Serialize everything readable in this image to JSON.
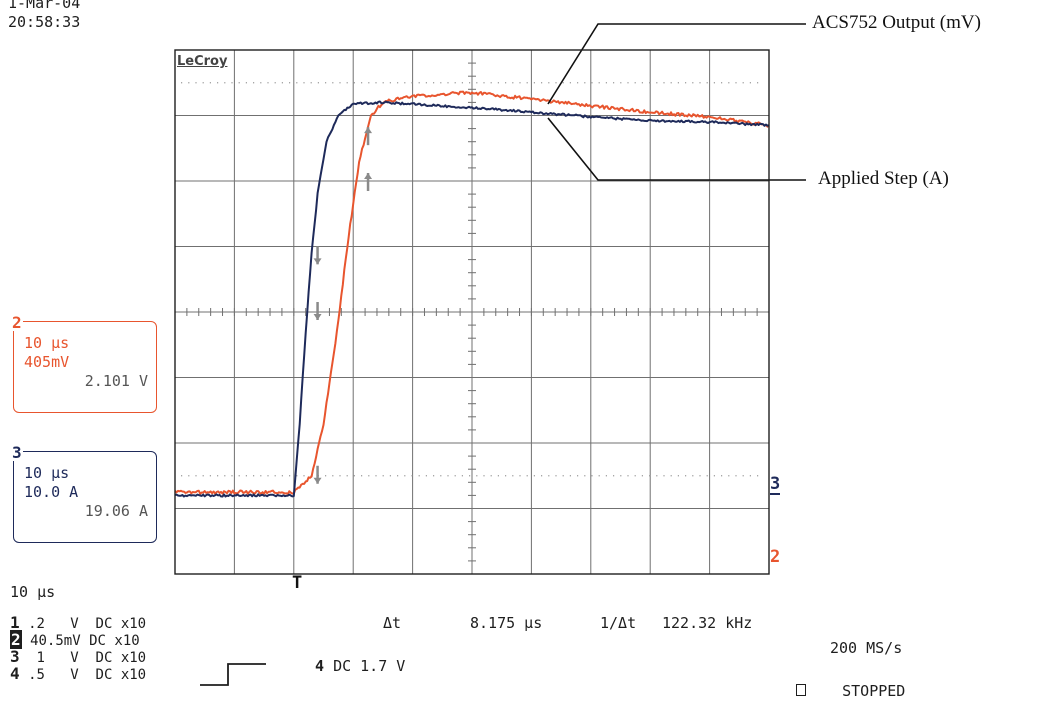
{
  "header": {
    "date": "1-Mar-04",
    "time": "20:58:33"
  },
  "brand": "LeCroy",
  "annotations": {
    "output": "ACS752 Output (mV)",
    "step": "Applied Step (A)"
  },
  "channel_boxes": {
    "ch2": {
      "number": "2",
      "timebase": "10 µs",
      "scale": "405mV",
      "reading": "2.101 V"
    },
    "ch3": {
      "number": "3",
      "timebase": "10 µs",
      "scale": "10.0 A",
      "reading": "19.06 A"
    }
  },
  "trace_markers": {
    "ch3": "3",
    "ch2": "2",
    "trigger": "T"
  },
  "timebase": "10 µs",
  "measurements": {
    "dt_label": "Δt",
    "dt_value": "8.175 µs",
    "freq_label": "1/Δt",
    "freq_value": "122.32 kHz"
  },
  "channels": [
    {
      "num": "1",
      "scale": ".2",
      "unit": "V",
      "coupling": "DC",
      "probe": "x10"
    },
    {
      "num": "2",
      "scale": "40.5mV",
      "unit": "",
      "coupling": "DC",
      "probe": "x10"
    },
    {
      "num": "3",
      "scale": "1",
      "unit": "V",
      "coupling": "DC",
      "probe": "x10"
    },
    {
      "num": "4",
      "scale": ".5",
      "unit": "V",
      "coupling": "DC",
      "probe": "x10"
    }
  ],
  "trigger": {
    "channel": "4",
    "setting": "DC 1.7 V"
  },
  "status": {
    "sample_rate": "200 MS/s",
    "state": "STOPPED"
  },
  "colors": {
    "ch2": "#e8552e",
    "ch3": "#1e2a5a",
    "grid": "#707070"
  },
  "chart_data": {
    "type": "line",
    "title": "",
    "xlabel": "",
    "ylabel": "",
    "divisions": {
      "x": 10,
      "y": 8
    },
    "x_units": "div",
    "y_units": "div",
    "grid": true,
    "series": [
      {
        "name": "ACS752 Output (mV)",
        "color": "#e8552e",
        "points": [
          [
            0,
            1.25
          ],
          [
            1.6,
            1.25
          ],
          [
            2.0,
            1.25
          ],
          [
            2.3,
            1.5
          ],
          [
            2.5,
            2.3
          ],
          [
            2.7,
            3.5
          ],
          [
            2.9,
            5.0
          ],
          [
            3.1,
            6.3
          ],
          [
            3.3,
            7.0
          ],
          [
            3.5,
            7.2
          ],
          [
            4.0,
            7.3
          ],
          [
            5.0,
            7.35
          ],
          [
            6.0,
            7.25
          ],
          [
            7.0,
            7.15
          ],
          [
            8.0,
            7.05
          ],
          [
            9.0,
            6.98
          ],
          [
            10,
            6.85
          ]
        ]
      },
      {
        "name": "Applied Step (A)",
        "color": "#1e2a5a",
        "points": [
          [
            0,
            1.2
          ],
          [
            1.8,
            1.2
          ],
          [
            2.0,
            1.2
          ],
          [
            2.1,
            2.3
          ],
          [
            2.2,
            3.7
          ],
          [
            2.3,
            4.9
          ],
          [
            2.4,
            5.8
          ],
          [
            2.55,
            6.6
          ],
          [
            2.75,
            7.0
          ],
          [
            3.0,
            7.18
          ],
          [
            3.5,
            7.2
          ],
          [
            5.0,
            7.12
          ],
          [
            6.0,
            7.05
          ],
          [
            7.0,
            6.98
          ],
          [
            8.0,
            6.92
          ],
          [
            9.0,
            6.9
          ],
          [
            10,
            6.85
          ]
        ]
      }
    ],
    "cursors": [
      {
        "channel": "ch3",
        "direction": "down",
        "x": 2.4,
        "y": 4.85
      },
      {
        "channel": "ch3",
        "direction": "down",
        "x": 2.4,
        "y": 4.0
      },
      {
        "channel": "ch2",
        "direction": "down",
        "x": 2.4,
        "y": 1.5
      },
      {
        "channel": "ch2",
        "direction": "up",
        "x": 3.25,
        "y": 6.7
      },
      {
        "channel": "ch2",
        "direction": "up",
        "x": 3.25,
        "y": 6.0
      }
    ]
  }
}
